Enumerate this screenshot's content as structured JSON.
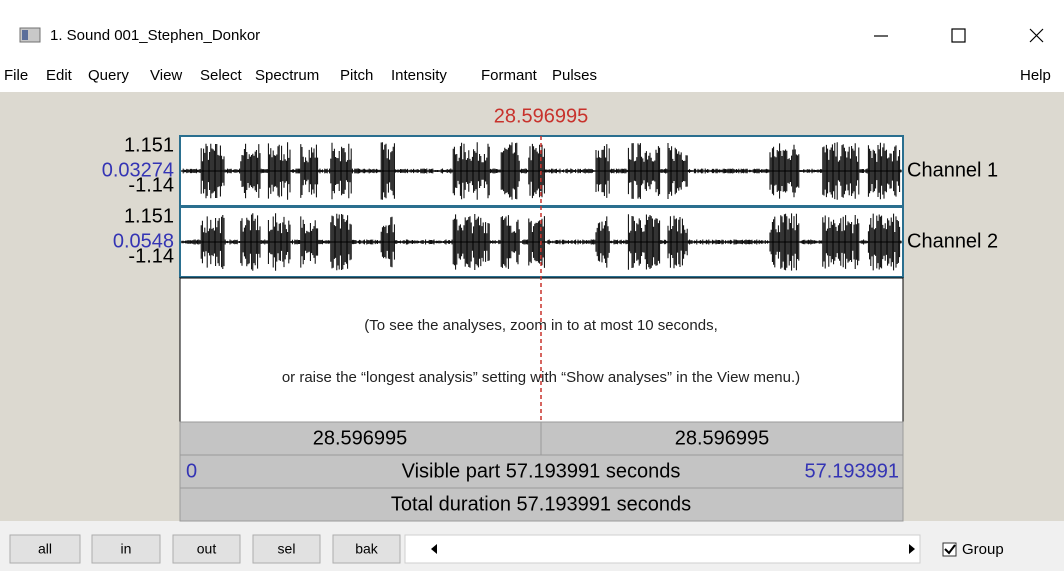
{
  "window": {
    "title": "1. Sound 001_Stephen_Donkor"
  },
  "menu": [
    "File",
    "Edit",
    "Query",
    "View",
    "Select",
    "Spectrum",
    "Pitch",
    "Intensity",
    "Formant",
    "Pulses",
    "Help"
  ],
  "cursor_time": "28.596995",
  "channels": [
    {
      "top": "1.151",
      "value": "0.03274",
      "bottom": "-1.14",
      "label": "Channel 1"
    },
    {
      "top": "1.151",
      "value": "0.0548",
      "bottom": "-1.14",
      "label": "Channel 2"
    }
  ],
  "message": [
    "(To see the analyses, zoom in to at most 10 seconds,",
    "or raise the “longest analysis” setting with “Show analyses” in the View menu.)"
  ],
  "bars": {
    "left_time": "28.596995",
    "right_time": "28.596995",
    "visible_start": "0",
    "visible_label": "Visible part 57.193991 seconds",
    "visible_end": "57.193991",
    "total": "Total duration 57.193991 seconds"
  },
  "buttons": [
    "all",
    "in",
    "out",
    "sel",
    "bak"
  ],
  "group": {
    "label": "Group",
    "checked": true
  }
}
